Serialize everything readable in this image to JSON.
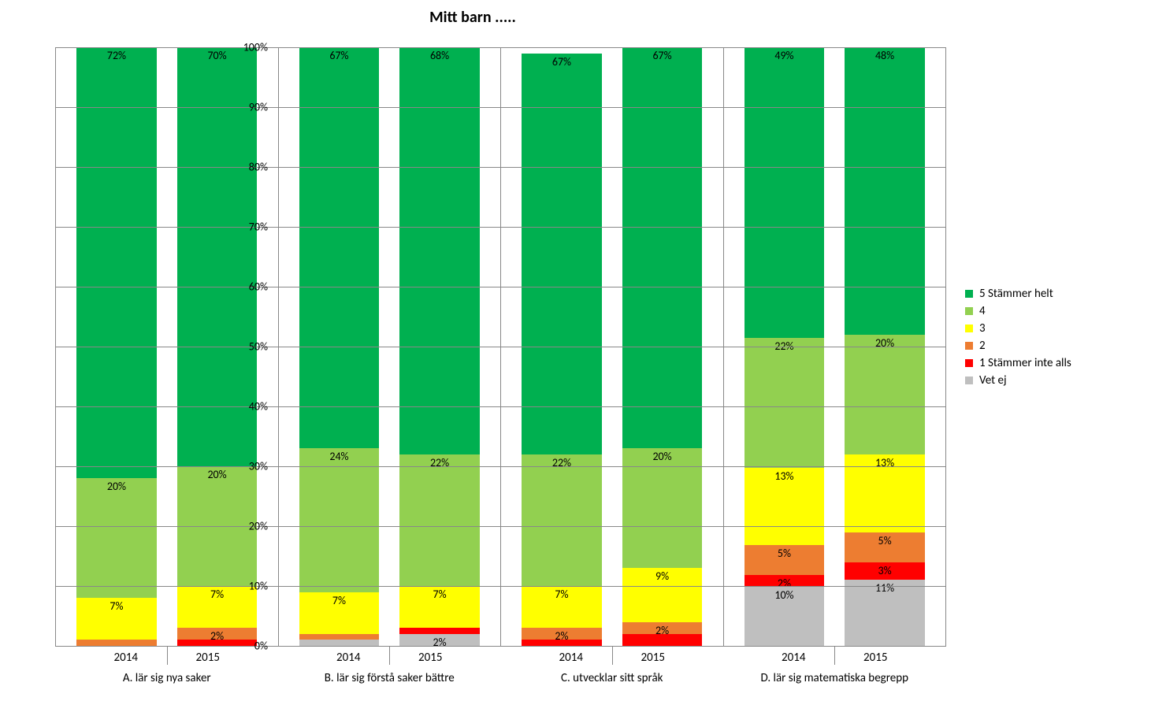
{
  "chart": {
    "title": "Mitt barn .....",
    "title_fontsize": 20,
    "background_color": "#ffffff",
    "grid_color": "#888888",
    "type": "stacked-bar-100",
    "ylim": [
      0,
      100
    ],
    "ytick_step": 10,
    "ylabel_suffix": "%",
    "label_fontsize": 14,
    "series": [
      {
        "key": "vetej",
        "name": "Vet ej",
        "color": "#bfbfbf"
      },
      {
        "key": "s1",
        "name": "1 Stämmer inte alls",
        "color": "#ff0000"
      },
      {
        "key": "s2",
        "name": "2",
        "color": "#ed7d31"
      },
      {
        "key": "s3",
        "name": "3",
        "color": "#ffff00"
      },
      {
        "key": "s4",
        "name": "4",
        "color": "#92d050"
      },
      {
        "key": "s5",
        "name": "5 Stämmer helt",
        "color": "#00b050"
      }
    ],
    "groups": [
      {
        "label": "A. lär sig nya saker",
        "bars": [
          {
            "year": "2014",
            "values": {
              "vetej": 0,
              "s1": 0,
              "s2": 1,
              "s3": 7,
              "s4": 20,
              "s5": 72
            },
            "show": {
              "s3": "7%",
              "s4": "20%",
              "s5": "72%"
            }
          },
          {
            "year": "2015",
            "values": {
              "vetej": 0,
              "s1": 1,
              "s2": 2,
              "s3": 7,
              "s4": 20,
              "s5": 70
            },
            "show": {
              "s2": "2%",
              "s3": "7%",
              "s4": "20%",
              "s5": "70%"
            }
          }
        ]
      },
      {
        "label": "B. lär sig förstå saker bättre",
        "bars": [
          {
            "year": "2014",
            "values": {
              "vetej": 1,
              "s1": 0,
              "s2": 1,
              "s3": 7,
              "s4": 24,
              "s5": 67
            },
            "show": {
              "s3": "7%",
              "s4": "24%",
              "s5": "67%"
            }
          },
          {
            "year": "2015",
            "values": {
              "vetej": 2,
              "s1": 1,
              "s2": 0,
              "s3": 7,
              "s4": 22,
              "s5": 68
            },
            "show": {
              "vetej": "2%",
              "s3": "7%",
              "s4": "22%",
              "s5": "68%"
            }
          }
        ]
      },
      {
        "label": "C. utvecklar sitt språk",
        "bars": [
          {
            "year": "2014",
            "values": {
              "vetej": 0,
              "s1": 1,
              "s2": 2,
              "s3": 7,
              "s4": 22,
              "s5": 67
            },
            "show": {
              "s2": "2%",
              "s3": "7%",
              "s4": "22%",
              "s5": "67%"
            }
          },
          {
            "year": "2015",
            "values": {
              "vetej": 0,
              "s1": 2,
              "s2": 2,
              "s3": 9,
              "s4": 20,
              "s5": 67
            },
            "show": {
              "s2": "2%",
              "s3": "9%",
              "s4": "20%",
              "s5": "67%"
            }
          }
        ]
      },
      {
        "label": "D. lär sig matematiska begrepp",
        "bars": [
          {
            "year": "2014",
            "values": {
              "vetej": 10,
              "s1": 2,
              "s2": 5,
              "s3": 13,
              "s4": 22,
              "s5": 49
            },
            "show": {
              "vetej": "10%",
              "s1": "2%",
              "s2": "5%",
              "s3": "13%",
              "s4": "22%",
              "s5": "49%"
            }
          },
          {
            "year": "2015",
            "values": {
              "vetej": 11,
              "s1": 3,
              "s2": 5,
              "s3": 13,
              "s4": 20,
              "s5": 48
            },
            "show": {
              "vetej": "11%",
              "s1": "3%",
              "s2": "5%",
              "s3": "13%",
              "s4": "20%",
              "s5": "48%"
            }
          }
        ]
      }
    ],
    "legend_order": [
      "s5",
      "s4",
      "s3",
      "s2",
      "s1",
      "vetej"
    ]
  }
}
